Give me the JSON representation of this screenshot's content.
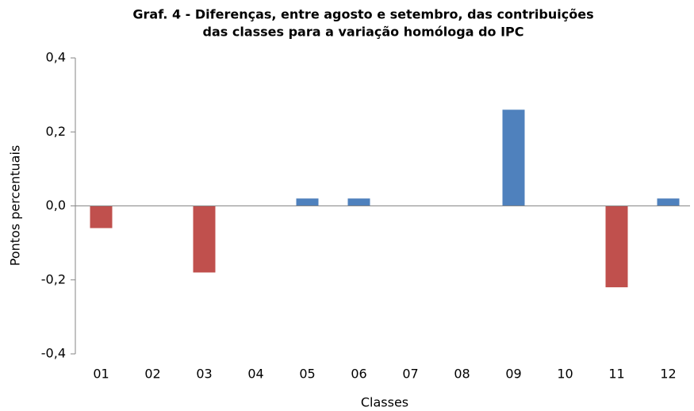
{
  "chart_data": {
    "type": "bar",
    "title": [
      "Graf. 4 - Diferenças, entre agosto e setembro, das contribuições",
      "das classes para a variação homóloga do IPC"
    ],
    "x_label": "Classes",
    "y_label": "Pontos percentuais",
    "categories": [
      "01",
      "02",
      "03",
      "04",
      "05",
      "06",
      "07",
      "08",
      "09",
      "10",
      "11",
      "12"
    ],
    "values": [
      -0.06,
      0,
      -0.18,
      0,
      0.02,
      0.02,
      0,
      0,
      0.26,
      0,
      -0.22,
      0.02
    ],
    "colors": [
      "#c0504d",
      "#4f81bd",
      "#c0504d",
      "#4f81bd",
      "#4f81bd",
      "#4f81bd",
      "#4f81bd",
      "#4f81bd",
      "#4f81bd",
      "#4f81bd",
      "#c0504d",
      "#4f81bd"
    ],
    "ylim": [
      -0.4,
      0.4
    ],
    "yticks": [
      {
        "value": -0.4,
        "label": "-0,4"
      },
      {
        "value": -0.2,
        "label": "-0,2"
      },
      {
        "value": 0,
        "label": "0,0"
      },
      {
        "value": 0.2,
        "label": "0,2"
      },
      {
        "value": 0.4,
        "label": "0,4"
      }
    ],
    "grid": false
  }
}
